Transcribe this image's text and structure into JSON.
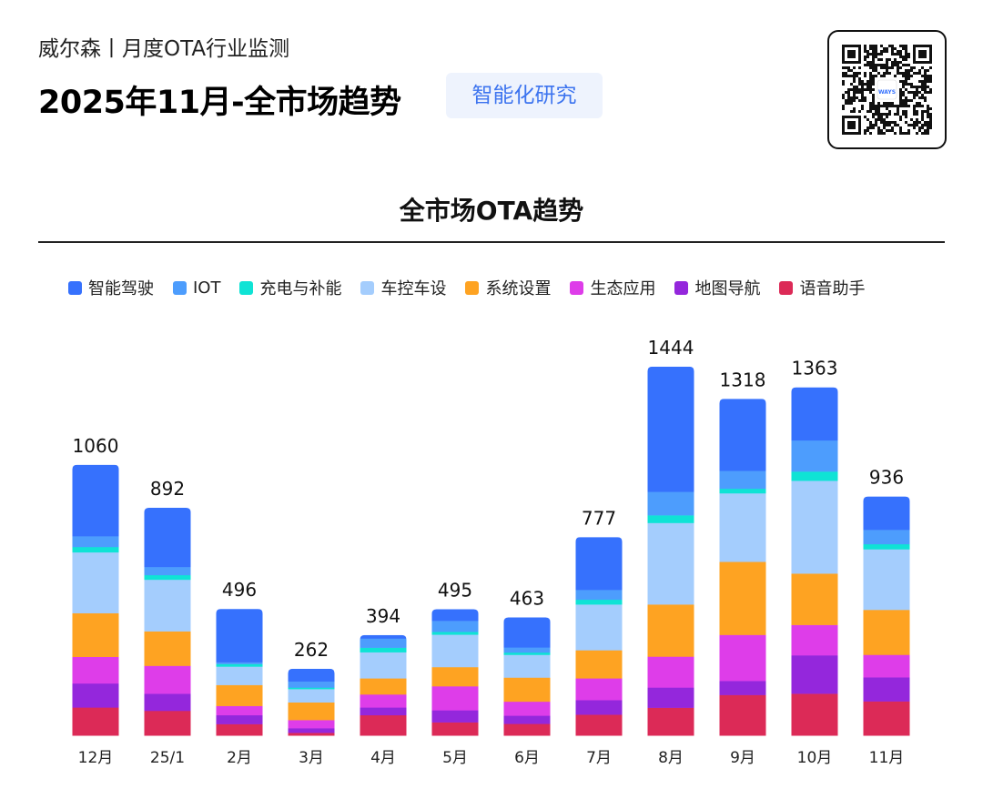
{
  "header": {
    "subtitle": "威尔森丨月度OTA行业监测",
    "title": "2025年11月-全市场趋势",
    "tag": "智能化研究",
    "qr_logo": "WAYS"
  },
  "chart_data": {
    "type": "bar",
    "stacked": true,
    "title": "全市场OTA趋势",
    "xlabel": "",
    "ylabel": "",
    "legend_position": "top",
    "grid": false,
    "categories": [
      "12月",
      "25/1",
      "2月",
      "3月",
      "4月",
      "5月",
      "6月",
      "7月",
      "8月",
      "9月",
      "10月",
      "11月"
    ],
    "totals": [
      1060,
      892,
      496,
      262,
      394,
      495,
      463,
      777,
      1444,
      1318,
      1363,
      936
    ],
    "series": [
      {
        "name": "语音助手",
        "color": "#dc2a57",
        "values": [
          111,
          98,
          46,
          12,
          81,
          53,
          47,
          83,
          110,
          160,
          165,
          135
        ]
      },
      {
        "name": "地图导航",
        "color": "#9427dc",
        "values": [
          94,
          67,
          35,
          18,
          30,
          47,
          32,
          57,
          79,
          55,
          150,
          94
        ]
      },
      {
        "name": "生态应用",
        "color": "#de3de9",
        "values": [
          104,
          109,
          36,
          32,
          51,
          94,
          55,
          85,
          121,
          180,
          119,
          88
        ]
      },
      {
        "name": "系统设置",
        "color": "#fea322",
        "values": [
          171,
          135,
          82,
          69,
          63,
          75,
          94,
          110,
          204,
          286,
          201,
          176
        ]
      },
      {
        "name": "车控车设",
        "color": "#a4cdfd",
        "values": [
          238,
          202,
          72,
          52,
          102,
          127,
          89,
          179,
          319,
          268,
          363,
          237
        ]
      },
      {
        "name": "充电与补能",
        "color": "#0fe3d5",
        "values": [
          21,
          18,
          10,
          6,
          18,
          11,
          9,
          19,
          30,
          18,
          36,
          20
        ]
      },
      {
        "name": "IOT",
        "color": "#4d9dfd",
        "values": [
          42,
          32,
          7,
          24,
          36,
          43,
          20,
          38,
          92,
          70,
          122,
          56
        ]
      },
      {
        "name": "智能驾驶",
        "color": "#3671fd",
        "values": [
          279,
          231,
          208,
          49,
          13,
          45,
          117,
          206,
          489,
          281,
          207,
          130
        ]
      }
    ]
  }
}
